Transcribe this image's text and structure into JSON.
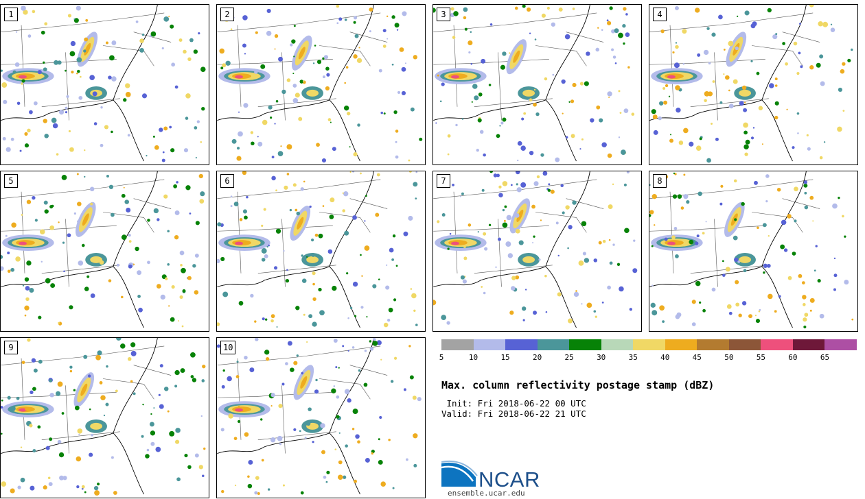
{
  "panels": [
    {
      "label": "1"
    },
    {
      "label": "2"
    },
    {
      "label": "3"
    },
    {
      "label": "4"
    },
    {
      "label": "5"
    },
    {
      "label": "6"
    },
    {
      "label": "7"
    },
    {
      "label": "8"
    },
    {
      "label": "9"
    },
    {
      "label": "10"
    }
  ],
  "colorbar": {
    "ticks": [
      "5",
      "10",
      "15",
      "20",
      "25",
      "30",
      "35",
      "40",
      "45",
      "50",
      "55",
      "60",
      "65"
    ],
    "colors": [
      "#a3a3a3",
      "#b3bbea",
      "#5762d5",
      "#4b969a",
      "#078207",
      "#b8d8b8",
      "#f0d865",
      "#eeac1f",
      "#b37b30",
      "#8c5638",
      "#ee507c",
      "#6e1839",
      "#ad4fa4"
    ]
  },
  "title": "Max. column reflectivity postage stamp (dBZ)",
  "init": " Init: Fri 2018-06-22 00 UTC",
  "valid": "Valid: Fri 2018-06-22 21 UTC",
  "logo": {
    "text": "NCAR",
    "url": "ensemble.ucar.edu"
  }
}
